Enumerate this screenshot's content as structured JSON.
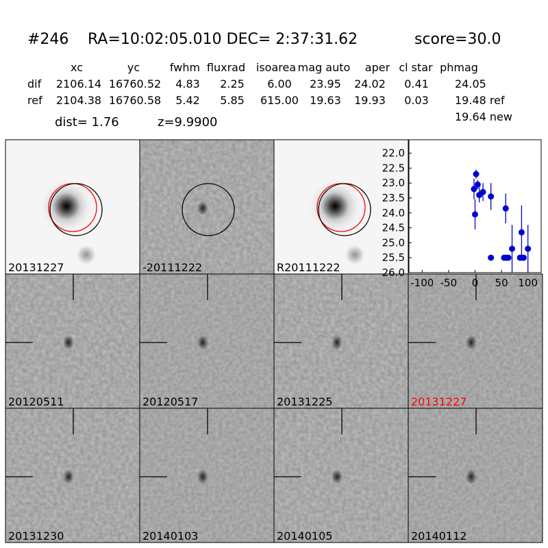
{
  "header": {
    "id": "#246",
    "coords": "RA=10:02:05.010 DEC= 2:37:31.62",
    "score": "score=30.0"
  },
  "table": {
    "columns": [
      "xc",
      "yc",
      "fwhm",
      "fluxrad",
      "isoarea",
      "mag auto",
      "aper",
      "cl star",
      "phmag"
    ],
    "rows": [
      [
        "dif",
        "2106.14",
        "16760.52",
        "4.83",
        "2.25",
        "6.00",
        "23.95",
        "24.02",
        "0.41",
        "24.05"
      ],
      [
        "ref",
        "2104.38",
        "16760.58",
        "5.42",
        "5.85",
        "615.00",
        "19.63",
        "19.93",
        "0.03",
        "19.48 ref"
      ]
    ],
    "extra": "19.64 new",
    "dist": "dist=  1.76",
    "z": "z=9.9900"
  },
  "panels": [
    {
      "label": "20131227",
      "color": "#000000"
    },
    {
      "label": "-20111222",
      "color": "#000000"
    },
    {
      "label": "R20111222",
      "color": "#000000"
    },
    {
      "label": "20120511",
      "color": "#000000"
    },
    {
      "label": "20120517",
      "color": "#000000"
    },
    {
      "label": "20131225",
      "color": "#000000"
    },
    {
      "label": "20131227",
      "color": "#ff0000"
    },
    {
      "label": "20131230",
      "color": "#000000"
    },
    {
      "label": "20140103",
      "color": "#000000"
    },
    {
      "label": "20140105",
      "color": "#000000"
    },
    {
      "label": "20140112",
      "color": "#000000"
    }
  ],
  "chart_data": {
    "type": "scatter",
    "xlim": [
      -125,
      125
    ],
    "ylim": [
      26,
      21.55
    ],
    "xticks": [
      -100,
      -50,
      0,
      50,
      100
    ],
    "yticks": [
      {
        "value": 22,
        "label": "22.0"
      },
      22.5,
      {
        "value": 23,
        "label": "23.0"
      },
      23.5,
      {
        "value": 24,
        "label": "24.0"
      },
      24.5,
      {
        "value": 25,
        "label": "25.0"
      },
      25.5,
      {
        "value": 26,
        "label": "26.0"
      }
    ],
    "series": [
      {
        "color": "#0000cc",
        "x": [
          -2,
          0,
          2,
          5,
          8,
          15,
          30,
          58,
          70,
          88,
          100,
          30,
          55,
          58,
          60,
          63,
          85,
          88,
          92
        ],
        "values": [
          23.2,
          24.05,
          22.7,
          23.05,
          23.4,
          23.3,
          23.45,
          23.85,
          25.2,
          24.65,
          25.2,
          25.5,
          25.5,
          25.5,
          25.5,
          25.5,
          25.5,
          25.5,
          25.5
        ],
        "errors": [
          0.35,
          0.5,
          0.15,
          0.15,
          0.25,
          0.3,
          0.45,
          0.5,
          0.8,
          0.9,
          0.8,
          0,
          0,
          0,
          0,
          0,
          0,
          0,
          0
        ]
      }
    ]
  }
}
